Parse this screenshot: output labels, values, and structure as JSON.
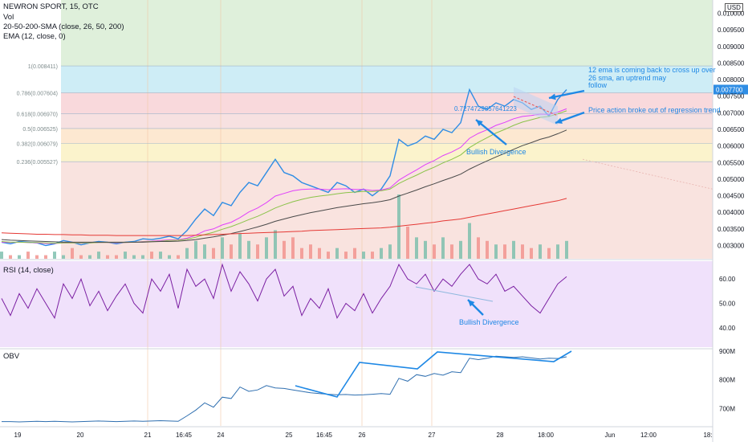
{
  "header": {
    "symbol_line": "NEWRON SPORT, 15, OTC",
    "vol_label": "Vol",
    "sma_label": "20-50-200-SMA (close, 26, 50, 200)",
    "ema_label": "EMA (12, close, 0)"
  },
  "currency_label": "USD",
  "rsi_label": "RSI (14, close)",
  "obv_label": "OBV",
  "annotations": {
    "ema_note_1": "12 ema is coming back to cross up over",
    "ema_note_2": "26 sma, an uptrend may",
    "ema_note_3": "follow",
    "breakout_note": "Price action broke out of regression trend",
    "bullish_div_price": "Bullish Divergence",
    "bullish_div_rsi": "Bullish Divergence",
    "regression_value": "0.7274729857641223"
  },
  "colors": {
    "price": "#2f8de4",
    "ema12": "#e040fb",
    "sma26": "#8bc34a",
    "sma50": "#4a4a4a",
    "sma200": "#e53935",
    "rsi_line": "#7b1fa2",
    "rsi_band": "#f0e1fb",
    "obv_line": "#2f6fb0",
    "annotation": "#1e88e5"
  },
  "chart_data": [
    {
      "type": "line",
      "title": "NEWRON SPORT, 15, OTC",
      "ylabel": "USD",
      "ylim": [
        0.0026,
        0.0104
      ],
      "y_ticks": [
        "0.003000",
        "0.003500",
        "0.004000",
        "0.004500",
        "0.005000",
        "0.005500",
        "0.006000",
        "0.006500",
        "0.007000",
        "0.007500",
        "0.008000",
        "0.008500",
        "0.009000",
        "0.009500",
        "0.010000"
      ],
      "last_price_label": "0.007700",
      "x_ticks": [
        "19",
        "20",
        "21",
        "16:45",
        "24",
        "25",
        "16:45",
        "26",
        "27",
        "28",
        "18:00",
        "Jun",
        "12:00",
        "18:"
      ],
      "fibonacci": [
        {
          "label": "1(0.008411)",
          "level": 0.008411
        },
        {
          "label": "0.786(0.007604)",
          "level": 0.007604
        },
        {
          "label": "0.618(0.006970)",
          "level": 0.00697
        },
        {
          "label": "0.5(0.006525)",
          "level": 0.006525
        },
        {
          "label": "0.382(0.006079)",
          "level": 0.006079
        },
        {
          "label": "0.236(0.005527)",
          "level": 0.005527
        }
      ],
      "series": [
        {
          "name": "Price",
          "values": [
            0.0031,
            0.00305,
            0.00312,
            0.0031,
            0.00308,
            0.003,
            0.00305,
            0.00315,
            0.0031,
            0.00302,
            0.00308,
            0.00312,
            0.0031,
            0.00305,
            0.0031,
            0.00312,
            0.0032,
            0.00318,
            0.00322,
            0.00328,
            0.0032,
            0.00345,
            0.0038,
            0.0041,
            0.0039,
            0.0043,
            0.0042,
            0.0046,
            0.0049,
            0.0048,
            0.0052,
            0.0056,
            0.0052,
            0.0051,
            0.0049,
            0.0048,
            0.0047,
            0.0046,
            0.0049,
            0.0048,
            0.0046,
            0.0047,
            0.0045,
            0.0047,
            0.0051,
            0.0062,
            0.006,
            0.0061,
            0.0063,
            0.0062,
            0.0065,
            0.0064,
            0.0067,
            0.0077,
            0.0072,
            0.0071,
            0.0073,
            0.0072,
            0.0074,
            0.0073,
            0.0071,
            0.0072,
            0.0069,
            0.0074,
            0.0077
          ]
        },
        {
          "name": "EMA 12",
          "values": [
            0.0031,
            0.00309,
            0.0031,
            0.00309,
            0.00308,
            0.00306,
            0.00306,
            0.00308,
            0.00308,
            0.00307,
            0.00308,
            0.00309,
            0.00309,
            0.00308,
            0.00309,
            0.0031,
            0.00312,
            0.00313,
            0.00315,
            0.00317,
            0.00317,
            0.00322,
            0.00331,
            0.00344,
            0.0035,
            0.00362,
            0.0037,
            0.00384,
            0.00401,
            0.00413,
            0.00429,
            0.00449,
            0.00457,
            0.00465,
            0.00469,
            0.0047,
            0.0047,
            0.00468,
            0.0047,
            0.00471,
            0.00469,
            0.00469,
            0.00466,
            0.00467,
            0.00474,
            0.00497,
            0.00513,
            0.00528,
            0.00544,
            0.00556,
            0.00571,
            0.00582,
            0.00596,
            0.00623,
            0.00638,
            0.00649,
            0.00662,
            0.00671,
            0.00682,
            0.00689,
            0.00692,
            0.00696,
            0.00695,
            0.00702,
            0.00712
          ]
        },
        {
          "name": "SMA 26",
          "values": [
            0.00312,
            0.0031,
            0.0031,
            0.00309,
            0.00309,
            0.00308,
            0.00307,
            0.00308,
            0.00308,
            0.00308,
            0.00308,
            0.00309,
            0.00309,
            0.00309,
            0.00309,
            0.0031,
            0.00311,
            0.00312,
            0.00313,
            0.00315,
            0.00316,
            0.00319,
            0.00325,
            0.00333,
            0.0034,
            0.00349,
            0.00357,
            0.00367,
            0.00378,
            0.00388,
            0.004,
            0.00413,
            0.00423,
            0.00432,
            0.00439,
            0.00445,
            0.00449,
            0.00452,
            0.00456,
            0.00459,
            0.00461,
            0.00463,
            0.00463,
            0.00465,
            0.0047,
            0.00487,
            0.005,
            0.00512,
            0.00525,
            0.00536,
            0.00549,
            0.0056,
            0.00573,
            0.00595,
            0.00611,
            0.00625,
            0.00639,
            0.0065,
            0.00662,
            0.00672,
            0.00679,
            0.00686,
            0.00689,
            0.00697,
            0.00706
          ]
        },
        {
          "name": "SMA 50",
          "values": [
            0.00318,
            0.00316,
            0.00315,
            0.00314,
            0.00313,
            0.00312,
            0.00311,
            0.0031,
            0.0031,
            0.0031,
            0.0031,
            0.0031,
            0.0031,
            0.0031,
            0.0031,
            0.0031,
            0.0031,
            0.00311,
            0.00312,
            0.00312,
            0.00313,
            0.00315,
            0.00318,
            0.00322,
            0.00326,
            0.00331,
            0.00336,
            0.00342,
            0.00349,
            0.00356,
            0.00364,
            0.00373,
            0.0038,
            0.00387,
            0.00393,
            0.00399,
            0.00404,
            0.00409,
            0.00414,
            0.00418,
            0.00422,
            0.00426,
            0.00429,
            0.00433,
            0.00438,
            0.00449,
            0.00458,
            0.00467,
            0.00477,
            0.00486,
            0.00496,
            0.00505,
            0.00515,
            0.0053,
            0.00543,
            0.00555,
            0.00567,
            0.00578,
            0.0059,
            0.00601,
            0.0061,
            0.0062,
            0.00627,
            0.00637,
            0.00648
          ]
        },
        {
          "name": "SMA 200",
          "values": [
            0.00338,
            0.00337,
            0.00336,
            0.00335,
            0.00334,
            0.00334,
            0.00333,
            0.00333,
            0.00332,
            0.00332,
            0.00331,
            0.00331,
            0.00331,
            0.0033,
            0.0033,
            0.0033,
            0.0033,
            0.0033,
            0.0033,
            0.0033,
            0.0033,
            0.0033,
            0.00331,
            0.00332,
            0.00333,
            0.00334,
            0.00335,
            0.00336,
            0.00337,
            0.00338,
            0.00339,
            0.0034,
            0.00341,
            0.00342,
            0.00343,
            0.00345,
            0.00346,
            0.00347,
            0.00348,
            0.00349,
            0.0035,
            0.00351,
            0.00352,
            0.00353,
            0.00355,
            0.00358,
            0.00361,
            0.00364,
            0.00367,
            0.0037,
            0.00374,
            0.00377,
            0.0038,
            0.00385,
            0.0039,
            0.00395,
            0.004,
            0.00405,
            0.0041,
            0.00415,
            0.0042,
            0.00425,
            0.0043,
            0.00435,
            0.00442
          ]
        }
      ],
      "volume": [
        2,
        1,
        1,
        2,
        1,
        1,
        2,
        1,
        3,
        1,
        1,
        2,
        1,
        1,
        2,
        1,
        1,
        2,
        2,
        1,
        1,
        3,
        5,
        4,
        3,
        6,
        4,
        7,
        5,
        4,
        6,
        8,
        5,
        6,
        3,
        4,
        3,
        2,
        3,
        2,
        3,
        2,
        2,
        3,
        4,
        18,
        9,
        6,
        5,
        4,
        6,
        4,
        5,
        10,
        6,
        5,
        4,
        4,
        5,
        4,
        3,
        4,
        3,
        4,
        5
      ]
    },
    {
      "type": "line",
      "title": "RSI (14, close)",
      "ylim": [
        32,
        68
      ],
      "y_ticks": [
        "40.00",
        "50.00",
        "60.00"
      ],
      "series": [
        {
          "name": "RSI",
          "values": [
            52,
            45,
            54,
            48,
            56,
            50,
            44,
            58,
            52,
            60,
            49,
            55,
            47,
            53,
            58,
            50,
            46,
            60,
            55,
            62,
            48,
            64,
            57,
            60,
            52,
            66,
            55,
            63,
            58,
            51,
            60,
            64,
            53,
            57,
            45,
            52,
            48,
            56,
            44,
            50,
            47,
            54,
            46,
            52,
            57,
            66,
            60,
            58,
            62,
            55,
            60,
            57,
            62,
            66,
            60,
            58,
            62,
            55,
            57,
            53,
            49,
            46,
            52,
            58,
            61
          ]
        }
      ]
    },
    {
      "type": "line",
      "title": "OBV",
      "y_ticks": [
        "700M",
        "800M",
        "900M"
      ],
      "series": [
        {
          "name": "OBV",
          "values": [
            655,
            655,
            654,
            655,
            656,
            655,
            656,
            655,
            654,
            655,
            656,
            657,
            656,
            655,
            656,
            657,
            656,
            657,
            658,
            657,
            656,
            675,
            695,
            720,
            705,
            740,
            735,
            775,
            760,
            765,
            780,
            772,
            770,
            765,
            760,
            755,
            752,
            750,
            748,
            749,
            747,
            748,
            750,
            752,
            750,
            805,
            795,
            818,
            812,
            822,
            816,
            828,
            825,
            875,
            870,
            875,
            882,
            880,
            878,
            880,
            876,
            872,
            875,
            874,
            880
          ]
        }
      ]
    }
  ]
}
